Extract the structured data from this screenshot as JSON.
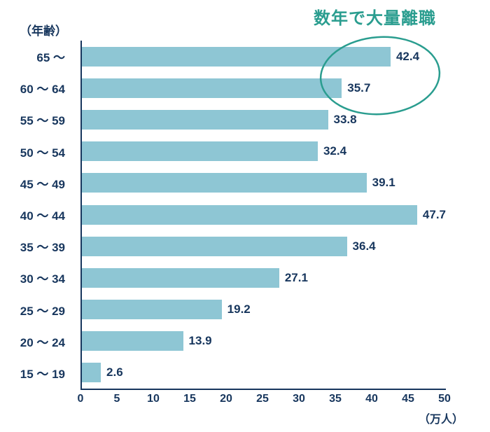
{
  "chart_data": {
    "type": "bar",
    "orientation": "horizontal",
    "title": "",
    "y_axis_title": "（年齢）",
    "x_unit_label": "（万人）",
    "annotation": "数年で大量離職",
    "categories": [
      "65 ～",
      "60 ～ 64",
      "55 ～ 59",
      "50 ～ 54",
      "45 ～ 49",
      "40 ～ 44",
      "35 ～ 39",
      "30 ～ 34",
      "25 ～ 29",
      "20 ～ 24",
      "15 ～ 19"
    ],
    "values": [
      42.4,
      35.7,
      33.8,
      32.4,
      39.1,
      47.7,
      36.4,
      27.1,
      19.2,
      13.9,
      2.6
    ],
    "x_ticks": [
      0,
      5,
      10,
      15,
      20,
      25,
      30,
      35,
      40,
      45,
      50
    ],
    "xlim": [
      0,
      50
    ],
    "grid": false,
    "legend": "none",
    "colors": {
      "bar": "#8ec6d4",
      "text": "#17365d",
      "accent": "#2a9d8f"
    }
  }
}
